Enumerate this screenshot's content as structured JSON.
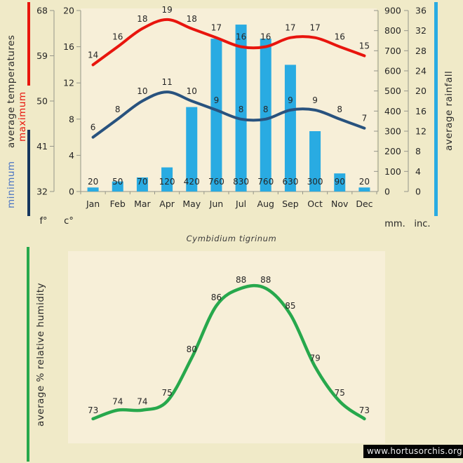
{
  "page": {
    "title": "Cymbidium tigrinum",
    "website": "www.hortusorchis.org",
    "background": "#f0eac8",
    "plot_background": "#f7efd8"
  },
  "legends": {
    "temperature": {
      "min": "minimum",
      "mid": "average temperatures",
      "max": "maximum"
    },
    "rainfall": "average rainfall",
    "humidity": "average %  relative humidity"
  },
  "axis_units": {
    "fahrenheit": "f°",
    "celsius": "c°",
    "mm": "mm.",
    "inches": "inc."
  },
  "colors": {
    "max_temp_line": "#e8150d",
    "min_temp_line": "#28527e",
    "min_legend_bar": "#17375e",
    "rainfall_bar": "#29abe2",
    "humidity_line": "#27a84c",
    "axis": "#95958a",
    "text": "#262626"
  },
  "chart_data": [
    {
      "type": "bar+line",
      "categories": [
        "Jan",
        "Feb",
        "Mar",
        "Apr",
        "May",
        "Jun",
        "Jul",
        "Aug",
        "Sep",
        "Oct",
        "Nov",
        "Dec"
      ],
      "series": [
        {
          "name": "maximum average temperature",
          "type": "line",
          "unit": "c°",
          "color": "#e8150d",
          "values": [
            14,
            16,
            18,
            19,
            18,
            17,
            16,
            16,
            17,
            17,
            16,
            15
          ]
        },
        {
          "name": "minimum average temperature",
          "type": "line",
          "unit": "c°",
          "color": "#28527e",
          "values": [
            6,
            8,
            10,
            11,
            10,
            9,
            8,
            8,
            9,
            9,
            8,
            7
          ]
        },
        {
          "name": "average rainfall",
          "type": "bar",
          "unit": "mm",
          "color": "#29abe2",
          "values": [
            20,
            50,
            70,
            120,
            420,
            760,
            830,
            760,
            630,
            300,
            90,
            20
          ]
        }
      ],
      "axes": {
        "celsius": {
          "ticks": [
            0,
            4,
            8,
            12,
            16,
            20
          ],
          "range": [
            0,
            20
          ]
        },
        "fahrenheit": {
          "ticks": [
            32,
            41,
            50,
            59,
            68
          ],
          "range": [
            32,
            68
          ]
        },
        "mm": {
          "ticks": [
            0,
            100,
            200,
            300,
            400,
            500,
            600,
            700,
            800,
            900
          ],
          "range": [
            0,
            900
          ]
        },
        "inches": {
          "ticks": [
            0,
            4,
            8,
            12,
            16,
            20,
            24,
            28,
            32,
            36
          ],
          "range": [
            0,
            36
          ]
        }
      },
      "grid": false,
      "legend_position": "left-and-right-rotated"
    },
    {
      "type": "line",
      "categories": [
        "Jan",
        "Feb",
        "Mar",
        "Apr",
        "May",
        "Jun",
        "Jul",
        "Aug",
        "Sep",
        "Oct",
        "Nov",
        "Dec"
      ],
      "series": [
        {
          "name": "average % relative humidity",
          "type": "line",
          "unit": "%",
          "color": "#27a84c",
          "values": [
            73,
            74,
            74,
            75,
            80,
            86,
            88,
            88,
            85,
            79,
            75,
            73
          ]
        }
      ],
      "axes_visible": false,
      "grid": false
    }
  ]
}
